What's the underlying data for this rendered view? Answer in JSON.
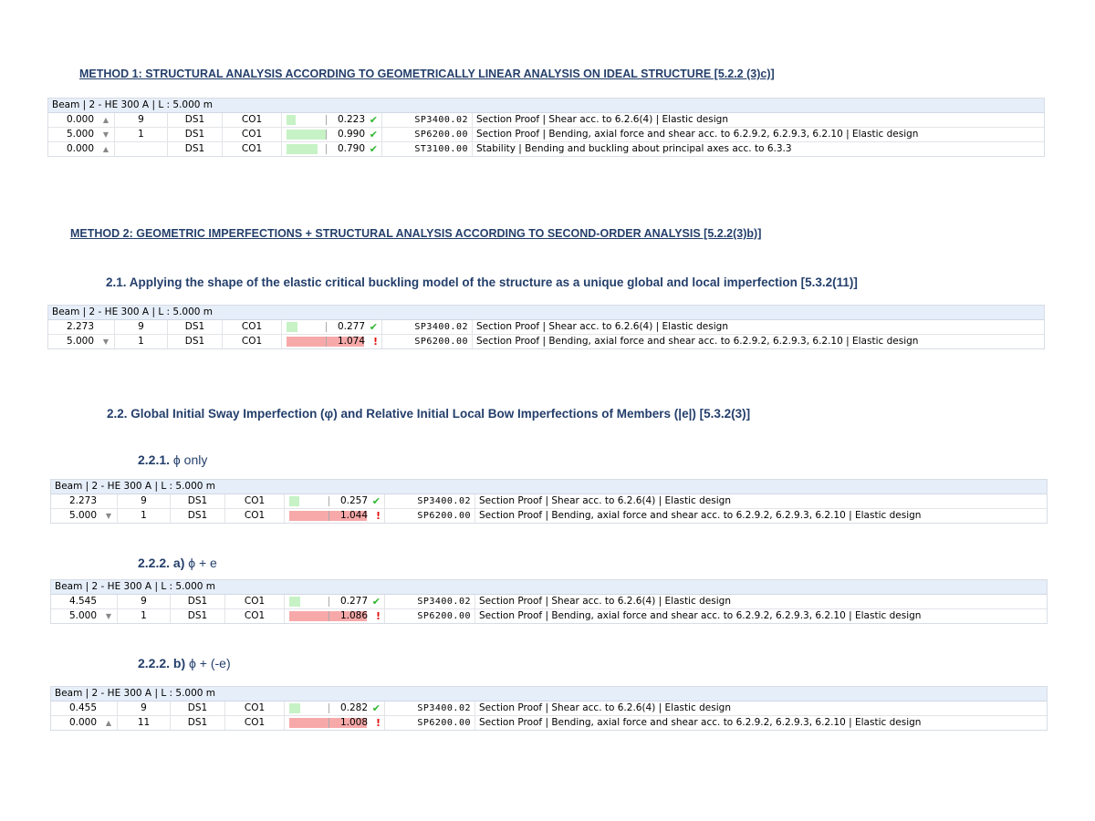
{
  "colors": {
    "heading": "#243f6b",
    "header_bg": "#e6eef9",
    "ok_bar": "#c6f2c6",
    "fail_bar": "#f7a9a9",
    "ok_icon": "#2eb82e",
    "fail_icon": "#e01010"
  },
  "headings": {
    "m1": "METHOD 1: STRUCTURAL ANALYSIS ACCORDING TO GEOMETRICALLY LINEAR ANALYSIS ON IDEAL STRUCTURE [5.2.2 (3)c)]",
    "m2": "METHOD 2: GEOMETRIC IMPERFECTIONS + STRUCTURAL ANALYSIS ACCORDING TO SECOND-ORDER ANALYSIS [5.2.2(3)b)]",
    "s21": "2.1. Applying the shape of the elastic critical buckling model of the structure as a unique global and local imperfection [5.3.2(11)]",
    "s22": "2.2. Global Initial Sway Imperfection (φ) and Relative Initial Local Bow Imperfections of Members (|e|) [5.3.2(3)]",
    "s221n": "2.2.1.",
    "s221t": "ϕ only",
    "s222an": "2.2.2. a)",
    "s222at": "ϕ + e",
    "s222bn": "2.2.2. b)",
    "s222bt": "ϕ + (-e)"
  },
  "tables": [
    {
      "header": "Beam | 2 - HE 300 A | L : 5.000 m",
      "rows": [
        {
          "loc": "0.000",
          "icon": "max-icon",
          "num": "9",
          "ds": "DS1",
          "co": "CO1",
          "ratio": 0.223,
          "val": "0.223",
          "ok": true,
          "code": "SP3400.02",
          "desc": "Section Proof | Shear acc. to 6.2.6(4) | Elastic design"
        },
        {
          "loc": "5.000",
          "icon": "min-icon",
          "num": "1",
          "ds": "DS1",
          "co": "CO1",
          "ratio": 0.99,
          "val": "0.990",
          "ok": true,
          "code": "SP6200.00",
          "desc": "Section Proof | Bending, axial force and shear acc. to 6.2.9.2, 6.2.9.3, 6.2.10 | Elastic design"
        },
        {
          "loc": "0.000",
          "icon": "max-icon",
          "num": "",
          "ds": "DS1",
          "co": "CO1",
          "ratio": 0.79,
          "val": "0.790",
          "ok": true,
          "code": "ST3100.00",
          "desc": "Stability | Bending and buckling about principal axes acc. to 6.3.3"
        }
      ]
    },
    {
      "header": "Beam | 2 - HE 300 A | L : 5.000 m",
      "rows": [
        {
          "loc": "2.273",
          "icon": "",
          "num": "9",
          "ds": "DS1",
          "co": "CO1",
          "ratio": 0.277,
          "val": "0.277",
          "ok": true,
          "code": "SP3400.02",
          "desc": "Section Proof | Shear acc. to 6.2.6(4) | Elastic design"
        },
        {
          "loc": "5.000",
          "icon": "min-icon",
          "num": "1",
          "ds": "DS1",
          "co": "CO1",
          "ratio": 1.074,
          "val": "1.074",
          "ok": false,
          "code": "SP6200.00",
          "desc": "Section Proof | Bending, axial force and shear acc. to 6.2.9.2, 6.2.9.3, 6.2.10 | Elastic design"
        }
      ]
    },
    {
      "header": "Beam | 2 - HE 300 A | L : 5.000 m",
      "rows": [
        {
          "loc": "2.273",
          "icon": "",
          "num": "9",
          "ds": "DS1",
          "co": "CO1",
          "ratio": 0.257,
          "val": "0.257",
          "ok": true,
          "code": "SP3400.02",
          "desc": "Section Proof | Shear acc. to 6.2.6(4) | Elastic design"
        },
        {
          "loc": "5.000",
          "icon": "min-icon",
          "num": "1",
          "ds": "DS1",
          "co": "CO1",
          "ratio": 1.044,
          "val": "1.044",
          "ok": false,
          "code": "SP6200.00",
          "desc": "Section Proof | Bending, axial force and shear acc. to 6.2.9.2, 6.2.9.3, 6.2.10 | Elastic design"
        }
      ]
    },
    {
      "header": "Beam | 2 - HE 300 A | L : 5.000 m",
      "rows": [
        {
          "loc": "4.545",
          "icon": "",
          "num": "9",
          "ds": "DS1",
          "co": "CO1",
          "ratio": 0.277,
          "val": "0.277",
          "ok": true,
          "code": "SP3400.02",
          "desc": "Section Proof | Shear acc. to 6.2.6(4) | Elastic design"
        },
        {
          "loc": "5.000",
          "icon": "min-icon",
          "num": "1",
          "ds": "DS1",
          "co": "CO1",
          "ratio": 1.086,
          "val": "1.086",
          "ok": false,
          "code": "SP6200.00",
          "desc": "Section Proof | Bending, axial force and shear acc. to 6.2.9.2, 6.2.9.3, 6.2.10 | Elastic design"
        }
      ]
    },
    {
      "header": "Beam | 2 - HE 300 A | L : 5.000 m",
      "rows": [
        {
          "loc": "0.455",
          "icon": "",
          "num": "9",
          "ds": "DS1",
          "co": "CO1",
          "ratio": 0.282,
          "val": "0.282",
          "ok": true,
          "code": "SP3400.02",
          "desc": "Section Proof | Shear acc. to 6.2.6(4) | Elastic design"
        },
        {
          "loc": "0.000",
          "icon": "max-icon",
          "num": "11",
          "ds": "DS1",
          "co": "CO1",
          "ratio": 1.008,
          "val": "1.008",
          "ok": false,
          "code": "SP6200.00",
          "desc": "Section Proof | Bending, axial force and shear acc. to 6.2.9.2, 6.2.9.3, 6.2.10 | Elastic design"
        }
      ]
    }
  ]
}
